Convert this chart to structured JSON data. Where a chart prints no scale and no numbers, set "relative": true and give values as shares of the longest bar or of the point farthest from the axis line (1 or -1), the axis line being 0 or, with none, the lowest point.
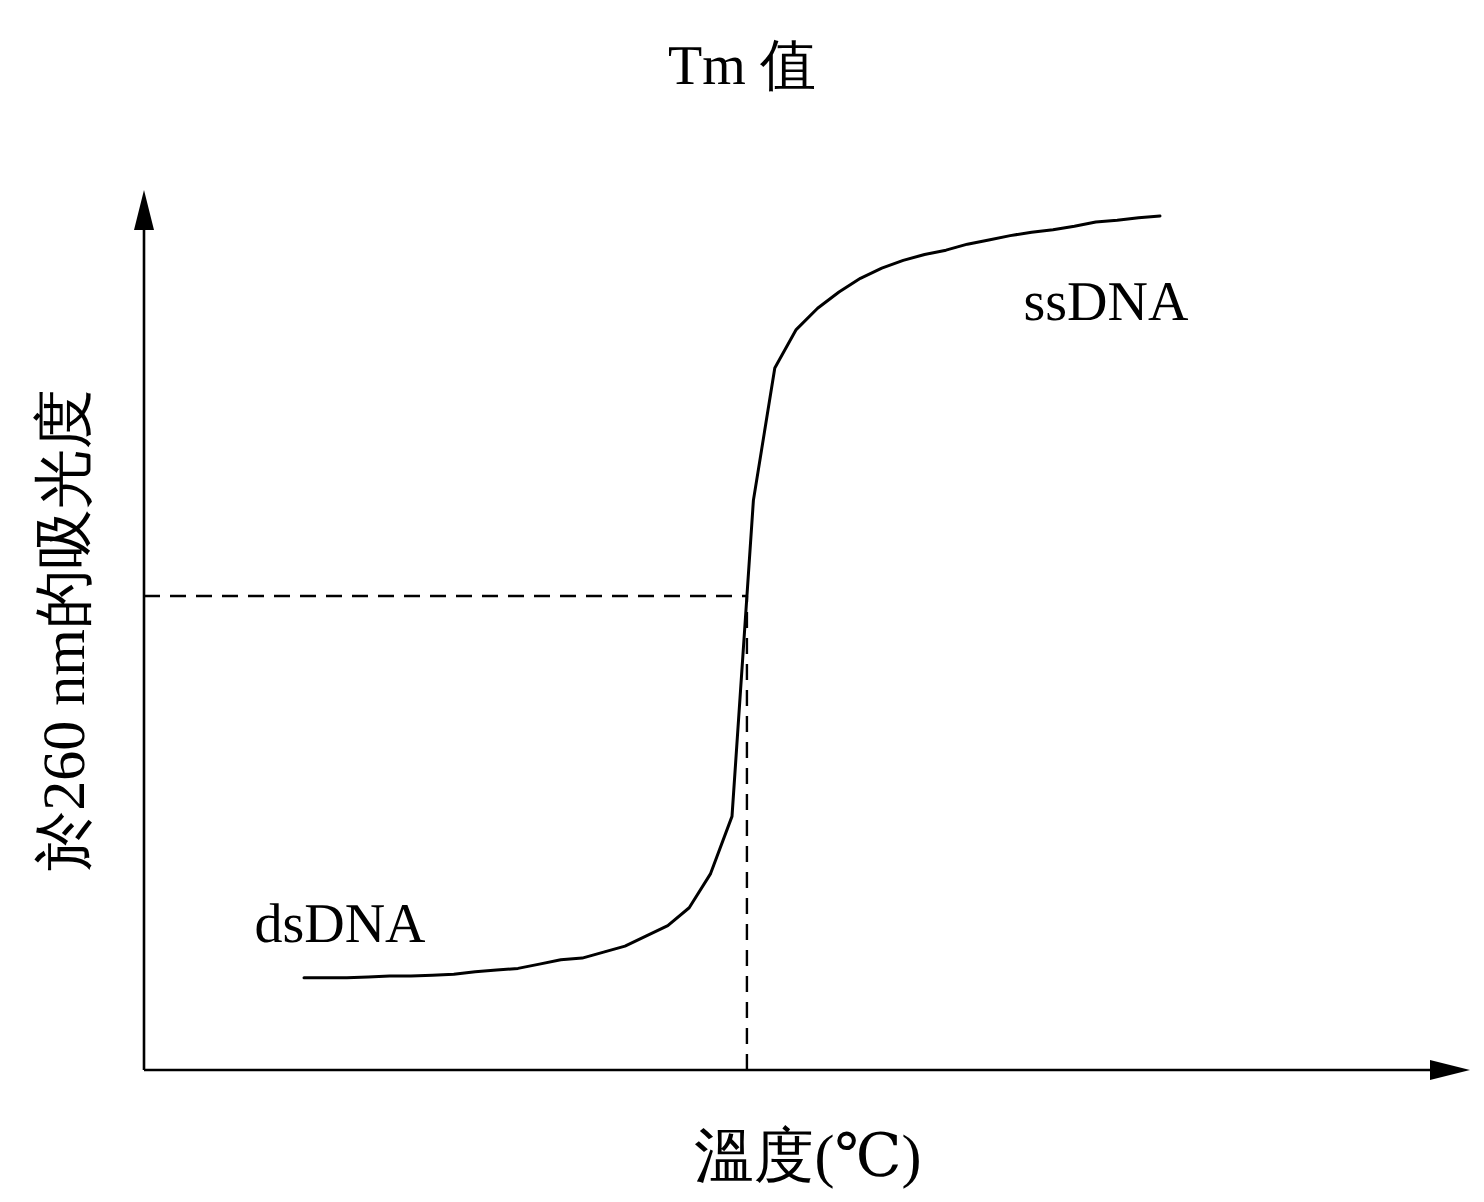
{
  "chart_data": {
    "type": "line",
    "title": "Tm 值",
    "xlabel": "溫度(℃)",
    "ylabel": "於260 nm的吸光度",
    "relative": true,
    "tick_labels": false,
    "marker": "none",
    "line_style": "solid",
    "categories": [
      null,
      null,
      null,
      null,
      null,
      null,
      null,
      null,
      null,
      null,
      null,
      null,
      null,
      null,
      null,
      null,
      null,
      null,
      null,
      null,
      null,
      null,
      null,
      null,
      null,
      null,
      null,
      null,
      null,
      null,
      null,
      null,
      null,
      null,
      null,
      null,
      null,
      null,
      null,
      null,
      null
    ],
    "series": [
      {
        "color": "#000000",
        "values": [
          0.108,
          0.108,
          0.108,
          0.109,
          0.11,
          0.11,
          0.111,
          0.112,
          0.115,
          0.117,
          0.119,
          0.124,
          0.129,
          0.131,
          0.138,
          0.145,
          0.157,
          0.169,
          0.19,
          0.23,
          0.297,
          0.667,
          0.822,
          0.867,
          0.892,
          0.911,
          0.927,
          0.939,
          0.948,
          0.955,
          0.96,
          0.967,
          0.972,
          0.977,
          0.981,
          0.984,
          0.988,
          0.993,
          0.995,
          0.998,
          1
        ]
      }
    ],
    "ref_lines": [
      {
        "axis": "y",
        "value": 0.555,
        "line_style": "dashed",
        "color": "#000000"
      }
    ],
    "annotations": [
      "dsDNA",
      "ssDNA"
    ]
  }
}
